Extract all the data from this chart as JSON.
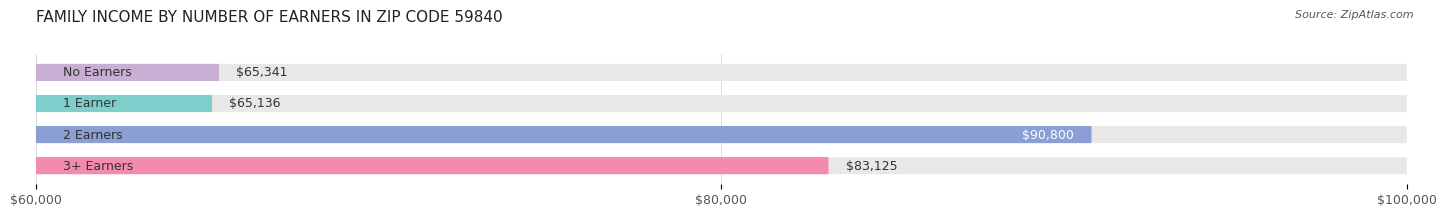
{
  "title": "FAMILY INCOME BY NUMBER OF EARNERS IN ZIP CODE 59840",
  "source": "Source: ZipAtlas.com",
  "categories": [
    "No Earners",
    "1 Earner",
    "2 Earners",
    "3+ Earners"
  ],
  "values": [
    65341,
    65136,
    90800,
    83125
  ],
  "bar_colors": [
    "#c9afd4",
    "#7ecfcc",
    "#8b9fd4",
    "#f48baf"
  ],
  "bar_bg_color": "#e8e8e8",
  "label_colors": [
    "#333333",
    "#333333",
    "#ffffff",
    "#333333"
  ],
  "x_min": 60000,
  "x_max": 100000,
  "x_ticks": [
    60000,
    80000,
    100000
  ],
  "x_tick_labels": [
    "$60,000",
    "$80,000",
    "$100,000"
  ],
  "value_labels": [
    "$65,341",
    "$65,136",
    "$90,800",
    "$83,125"
  ],
  "bg_color": "#ffffff",
  "bar_height": 0.55,
  "title_fontsize": 11,
  "label_fontsize": 9,
  "tick_fontsize": 9
}
